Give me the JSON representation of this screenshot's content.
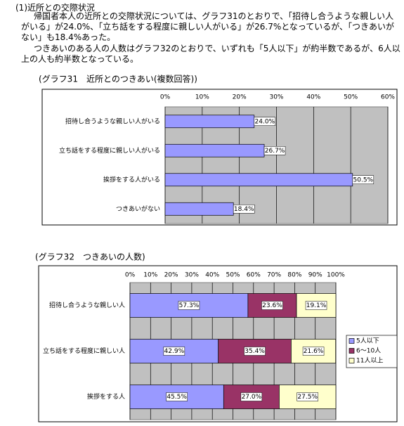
{
  "heading": "(1)近所との交際状況",
  "paragraphs": [
    "帰国者本人の近所との交際状況については、グラフ31のとおりで、「招待し合うような親しい人がいる」が24.0%、「立ち話をする程度に親しい人がいる」が26.7%となっているが、「つきあいがない」も18.4%あった。",
    "つきあいのある人の人数はグラフ32のとおりで、いずれも「5人以下」が約半数であるが、6人以上の人も約半数となっている。"
  ],
  "chart_data": [
    {
      "type": "bar",
      "title": "(グラフ31　近所とのつきあい(複数回答))",
      "categories": [
        "招待し合うような親しい人がいる",
        "立ち話をする程度に親しい人がいる",
        "挨拶をする人がいる",
        "つきあいがない"
      ],
      "values": [
        24.0,
        26.7,
        50.5,
        18.4
      ],
      "value_labels": [
        "24.0%",
        "26.7%",
        "50.5%",
        "18.4%"
      ],
      "color": "#9999ff",
      "xlim": [
        0,
        60
      ],
      "xticks": [
        {
          "value": 0,
          "label": "0%"
        },
        {
          "value": 10,
          "label": "10%"
        },
        {
          "value": 20,
          "label": "20%"
        },
        {
          "value": 30,
          "label": "30%"
        },
        {
          "value": 40,
          "label": "40%"
        },
        {
          "value": 50,
          "label": "50%"
        },
        {
          "value": 60,
          "label": "60%"
        }
      ],
      "grid": true
    },
    {
      "type": "stacked_bar",
      "title": "(グラフ32　つきあいの人数)",
      "categories": [
        "招待し合うような親しい人",
        "立ち話をする程度に親しい人",
        "挨拶をする人"
      ],
      "series": [
        {
          "name": "5人以下",
          "color": "#9999ff",
          "values": [
            57.3,
            42.9,
            45.5
          ],
          "value_labels": [
            "57.3%",
            "42.9%",
            "45.5%"
          ]
        },
        {
          "name": "6〜10人",
          "color": "#993366",
          "values": [
            23.6,
            35.4,
            27.0
          ],
          "value_labels": [
            "23.6%",
            "35.4%",
            "27.0%"
          ]
        },
        {
          "name": "11人以上",
          "color": "#ffffcc",
          "values": [
            19.1,
            21.6,
            27.5
          ],
          "value_labels": [
            "19.1%",
            "21.6%",
            "27.5%"
          ]
        }
      ],
      "xlim": [
        0,
        100
      ],
      "xticks": [
        {
          "value": 0,
          "label": "0%"
        },
        {
          "value": 10,
          "label": "10%"
        },
        {
          "value": 20,
          "label": "20%"
        },
        {
          "value": 30,
          "label": "30%"
        },
        {
          "value": 40,
          "label": "40%"
        },
        {
          "value": 50,
          "label": "50%"
        },
        {
          "value": 60,
          "label": "60%"
        },
        {
          "value": 70,
          "label": "70%"
        },
        {
          "value": 80,
          "label": "80%"
        },
        {
          "value": 90,
          "label": "90%"
        },
        {
          "value": 100,
          "label": "100%"
        }
      ],
      "grid": true,
      "legend": "right"
    }
  ]
}
